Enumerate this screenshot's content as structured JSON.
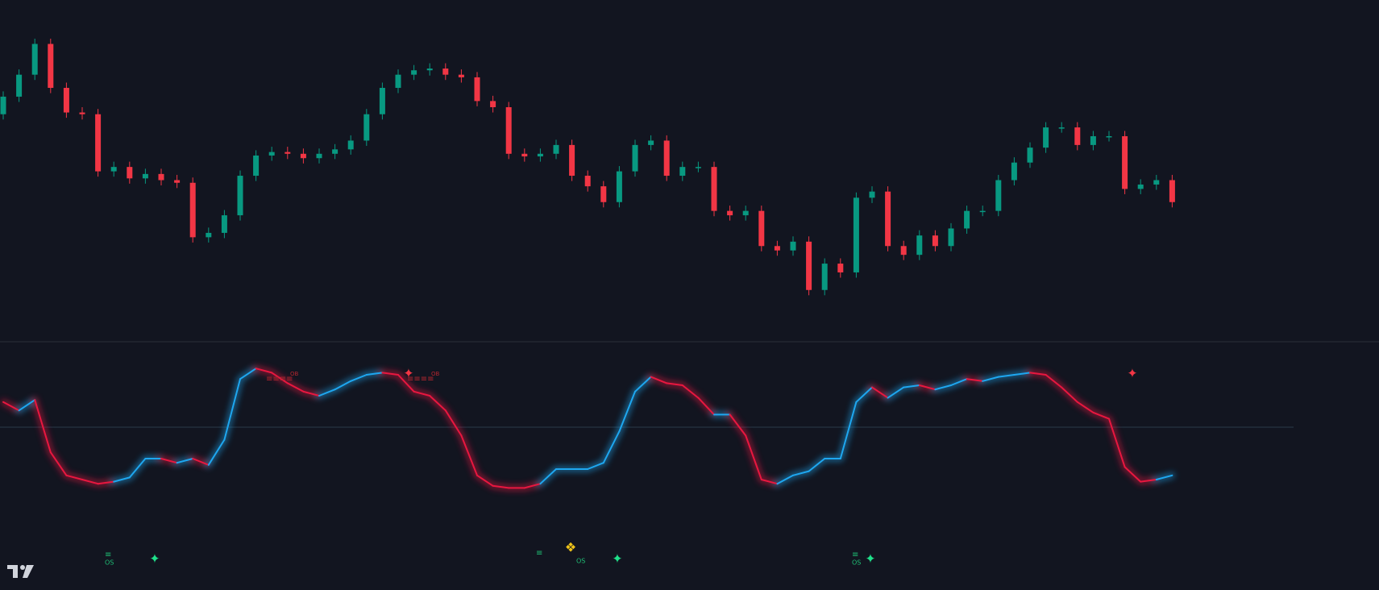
{
  "chart_data": [
    {
      "type": "candlestick",
      "up_color": "#089981",
      "down_color": "#f23645",
      "ylim": [
        0,
        388
      ],
      "open": [
        258,
        278,
        303,
        338,
        288,
        260,
        258,
        193,
        198,
        185,
        190,
        183,
        180,
        118,
        123,
        143,
        188,
        211,
        215,
        213,
        208,
        213,
        218,
        228,
        258,
        288,
        303,
        308,
        310,
        303,
        300,
        273,
        266,
        213,
        210,
        213,
        223,
        188,
        176,
        158,
        193,
        223,
        228,
        188,
        198,
        198,
        148,
        143,
        148,
        108,
        103,
        113,
        58,
        88,
        78,
        163,
        170,
        108,
        98,
        120,
        108,
        128,
        148,
        148,
        183,
        203,
        220,
        243,
        243,
        223,
        233,
        233,
        173,
        178,
        183
      ],
      "high": [
        284,
        309,
        344,
        344,
        294,
        266,
        264,
        204,
        204,
        196,
        196,
        189,
        186,
        129,
        149,
        194,
        217,
        221,
        221,
        219,
        219,
        224,
        234,
        264,
        294,
        309,
        314,
        316,
        316,
        309,
        306,
        279,
        272,
        219,
        219,
        229,
        229,
        194,
        182,
        199,
        229,
        234,
        234,
        204,
        204,
        204,
        154,
        154,
        154,
        114,
        119,
        119,
        94,
        94,
        169,
        176,
        176,
        114,
        126,
        126,
        134,
        154,
        154,
        189,
        209,
        226,
        249,
        249,
        249,
        239,
        239,
        239,
        184,
        189,
        189
      ],
      "low": [
        252,
        272,
        297,
        282,
        254,
        252,
        187,
        187,
        179,
        179,
        177,
        174,
        112,
        112,
        117,
        137,
        182,
        205,
        207,
        202,
        202,
        207,
        212,
        222,
        252,
        282,
        297,
        302,
        297,
        294,
        267,
        260,
        207,
        204,
        204,
        207,
        182,
        170,
        152,
        152,
        187,
        217,
        182,
        182,
        192,
        142,
        137,
        137,
        102,
        97,
        97,
        52,
        52,
        72,
        72,
        157,
        102,
        92,
        92,
        102,
        102,
        122,
        142,
        142,
        177,
        197,
        214,
        237,
        217,
        217,
        227,
        167,
        167,
        172,
        152
      ],
      "close": [
        278,
        303,
        338,
        288,
        260,
        258,
        193,
        198,
        185,
        190,
        183,
        180,
        118,
        123,
        143,
        188,
        211,
        215,
        213,
        208,
        213,
        218,
        228,
        258,
        288,
        303,
        308,
        310,
        303,
        300,
        273,
        266,
        213,
        210,
        213,
        223,
        188,
        176,
        158,
        193,
        223,
        228,
        188,
        198,
        198,
        148,
        143,
        148,
        108,
        103,
        113,
        58,
        88,
        78,
        163,
        170,
        108,
        98,
        120,
        108,
        128,
        148,
        148,
        183,
        203,
        220,
        243,
        243,
        223,
        233,
        233,
        173,
        178,
        183,
        158
      ]
    },
    {
      "type": "line",
      "up_color": "#1ea7f0",
      "down_color": "#e8173f",
      "ylim": [
        0,
        100
      ],
      "midline": 50,
      "ob_label": "OB",
      "os_label": "OS",
      "values": [
        62,
        58,
        63,
        38,
        27,
        25,
        23,
        24,
        26,
        35,
        35,
        33,
        35,
        32,
        44,
        73,
        78,
        76,
        71,
        67,
        65,
        68,
        72,
        75,
        76,
        75,
        67,
        65,
        58,
        46,
        27,
        22,
        21,
        21,
        23,
        30,
        30,
        30,
        33,
        48,
        67,
        74,
        71,
        70,
        64,
        56,
        56,
        46,
        25,
        23,
        27,
        29,
        35,
        35,
        62,
        69,
        64,
        69,
        70,
        68,
        70,
        73,
        72,
        74,
        75,
        76,
        75,
        69,
        62,
        57,
        54,
        31,
        24,
        25,
        27
      ]
    }
  ]
}
